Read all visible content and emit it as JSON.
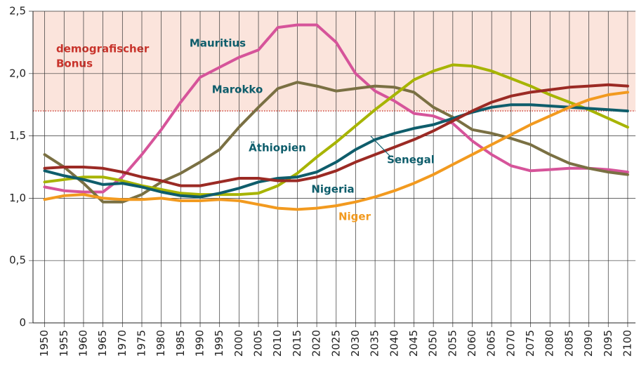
{
  "chart_data": {
    "type": "line",
    "x": [
      1950,
      1955,
      1960,
      1965,
      1970,
      1975,
      1980,
      1985,
      1990,
      1995,
      2000,
      2005,
      2010,
      2015,
      2020,
      2025,
      2030,
      2035,
      2040,
      2045,
      2050,
      2055,
      2060,
      2065,
      2070,
      2075,
      2080,
      2085,
      2090,
      2095,
      2100
    ],
    "xlim": [
      1947,
      2102
    ],
    "xticks": [
      1950,
      1955,
      1960,
      1965,
      1970,
      1975,
      1980,
      1985,
      1990,
      1995,
      2000,
      2005,
      2010,
      2015,
      2020,
      2025,
      2030,
      2035,
      2040,
      2045,
      2050,
      2055,
      2060,
      2065,
      2070,
      2075,
      2080,
      2085,
      2090,
      2095,
      2100
    ],
    "ylim": [
      0,
      2.5
    ],
    "yticks": [
      0,
      {
        "value": 0.5,
        "label": "0,5"
      },
      {
        "value": 1.0,
        "label": "1,0"
      },
      {
        "value": 1.5,
        "label": "1,5"
      },
      {
        "value": 2.0,
        "label": "2,0"
      },
      {
        "value": 2.5,
        "label": "2,5"
      }
    ],
    "grid": true,
    "band": {
      "from": 1.7,
      "to": 2.5,
      "color": "#fbe4dc",
      "line_color": "#c8332b",
      "label": [
        "demografischer",
        "Bonus"
      ]
    },
    "series": [
      {
        "name": "Mauritius",
        "color": "#d6549a",
        "label_color": "#0e5d6b",
        "values": [
          1.09,
          1.06,
          1.05,
          1.05,
          1.17,
          1.35,
          1.55,
          1.77,
          1.97,
          2.05,
          2.13,
          2.19,
          2.37,
          2.39,
          2.39,
          2.25,
          2.0,
          1.86,
          1.78,
          1.68,
          1.66,
          1.6,
          1.46,
          1.35,
          1.26,
          1.22,
          1.23,
          1.24,
          1.24,
          1.23,
          1.21
        ]
      },
      {
        "name": "Marokko",
        "color": "#7a7043",
        "label_color": "#0e5d6b",
        "values": [
          1.35,
          1.25,
          1.12,
          0.97,
          0.97,
          1.03,
          1.13,
          1.2,
          1.29,
          1.39,
          1.57,
          1.73,
          1.88,
          1.93,
          1.9,
          1.86,
          1.88,
          1.9,
          1.89,
          1.85,
          1.73,
          1.65,
          1.55,
          1.52,
          1.48,
          1.43,
          1.35,
          1.28,
          1.24,
          1.21,
          1.19
        ]
      },
      {
        "name": "Äthiopien",
        "color": "#a7b400",
        "label_color": "#0e5d6b",
        "values": [
          1.13,
          1.15,
          1.17,
          1.17,
          1.14,
          1.1,
          1.07,
          1.04,
          1.03,
          1.03,
          1.03,
          1.04,
          1.1,
          1.2,
          1.33,
          1.45,
          1.58,
          1.71,
          1.83,
          1.95,
          2.02,
          2.07,
          2.06,
          2.02,
          1.96,
          1.9,
          1.83,
          1.77,
          1.71,
          1.64,
          1.57
        ]
      },
      {
        "name": "Nigeria",
        "color": "#0e5d6b",
        "label_color": "#0e5d6b",
        "values": [
          1.22,
          1.18,
          1.15,
          1.11,
          1.12,
          1.09,
          1.05,
          1.02,
          1.01,
          1.04,
          1.08,
          1.13,
          1.16,
          1.17,
          1.21,
          1.29,
          1.39,
          1.47,
          1.52,
          1.56,
          1.59,
          1.64,
          1.69,
          1.73,
          1.75,
          1.75,
          1.74,
          1.73,
          1.72,
          1.71,
          1.7
        ]
      },
      {
        "name": "Senegal",
        "color": "#9b2a24",
        "label_color": "#0e5d6b",
        "values": [
          1.24,
          1.25,
          1.25,
          1.24,
          1.21,
          1.17,
          1.14,
          1.1,
          1.1,
          1.13,
          1.16,
          1.16,
          1.14,
          1.14,
          1.17,
          1.22,
          1.29,
          1.35,
          1.41,
          1.47,
          1.54,
          1.62,
          1.7,
          1.77,
          1.82,
          1.85,
          1.87,
          1.89,
          1.9,
          1.91,
          1.9
        ]
      },
      {
        "name": "Niger",
        "color": "#f29a1f",
        "label_color": "#f29a1f",
        "values": [
          0.99,
          1.02,
          1.03,
          1.0,
          0.99,
          0.99,
          1.0,
          0.98,
          0.98,
          0.99,
          0.98,
          0.95,
          0.92,
          0.91,
          0.92,
          0.94,
          0.97,
          1.01,
          1.06,
          1.12,
          1.19,
          1.27,
          1.35,
          1.43,
          1.51,
          1.59,
          1.66,
          1.73,
          1.79,
          1.83,
          1.85
        ]
      }
    ]
  }
}
